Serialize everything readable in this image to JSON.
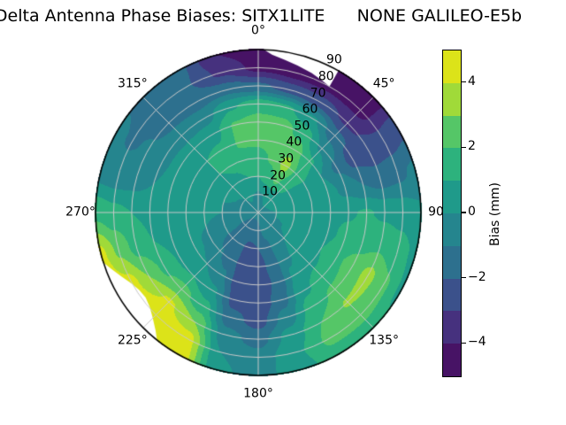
{
  "title": "Delta Antenna Phase Biases: SITX1LITE      NONE GALILEO-E5b",
  "station": "SITX1LITE",
  "antenna": "NONE",
  "signal": "GALILEO-E5b",
  "chart_data": {
    "type": "heatmap",
    "subtype": "polar-filled-contour",
    "title": "Delta Antenna Phase Biases: SITX1LITE      NONE GALILEO-E5b",
    "units": "mm",
    "angle_ticks": [
      {
        "label": "0°",
        "deg": 0
      },
      {
        "label": "45°",
        "deg": 45
      },
      {
        "label": "90",
        "deg": 90
      },
      {
        "label": "135°",
        "deg": 135
      },
      {
        "label": "180°",
        "deg": 180
      },
      {
        "label": "225°",
        "deg": 225
      },
      {
        "label": "270°",
        "deg": 270
      },
      {
        "label": "315°",
        "deg": 315
      }
    ],
    "radial_ticks": [
      {
        "label": "10",
        "r": 10
      },
      {
        "label": "20",
        "r": 20
      },
      {
        "label": "30",
        "r": 30
      },
      {
        "label": "40",
        "r": 40
      },
      {
        "label": "50",
        "r": 50
      },
      {
        "label": "60",
        "r": 60
      },
      {
        "label": "70",
        "r": 70
      },
      {
        "label": "80",
        "r": 80
      },
      {
        "label": "90",
        "r": 90
      }
    ],
    "radial_range": [
      0,
      90
    ],
    "grid_on": true,
    "colorbar": {
      "label": "Bias (mm)",
      "vmin": -5,
      "vmax": 5,
      "tick_values": [
        4,
        2,
        0,
        -2,
        -4
      ],
      "tick_labels": [
        "4",
        "2",
        "0",
        "−2",
        "−4"
      ],
      "band_colors_low_to_high": [
        "#471365",
        "#46317e",
        "#3b518b",
        "#2d708e",
        "#25858e",
        "#1f9a8a",
        "#2db27d",
        "#55c667",
        "#a0da39",
        "#dce319"
      ]
    },
    "grid": {
      "azimuths_deg": [
        0,
        15,
        30,
        45,
        60,
        75,
        90,
        105,
        120,
        135,
        150,
        165,
        180,
        195,
        210,
        225,
        240,
        255,
        270,
        285,
        300,
        315,
        330,
        345
      ],
      "radii": [
        0,
        10,
        20,
        30,
        40,
        50,
        60,
        70,
        80,
        90
      ],
      "values_mm": [
        [
          -0.3,
          -0.1,
          1.0,
          1.6,
          2.2,
          2.4,
          1.5,
          -1.8,
          -4.3,
          -4.8
        ],
        [
          -0.3,
          0.0,
          1.5,
          2.1,
          2.5,
          2.4,
          1.2,
          -2.4,
          -4.6,
          -4.8
        ],
        [
          -0.2,
          0.2,
          2.2,
          3.4,
          2.6,
          1.6,
          0.2,
          -2.6,
          -4.4,
          -4.7
        ],
        [
          -0.2,
          0.3,
          1.4,
          1.8,
          1.2,
          -0.2,
          -1.6,
          -3.2,
          -4.4,
          -4.5
        ],
        [
          -0.2,
          0.2,
          0.7,
          0.8,
          0.0,
          -1.2,
          -2.4,
          -2.8,
          -2.6,
          -2.2
        ],
        [
          -0.2,
          0.1,
          0.4,
          0.6,
          0.4,
          -0.3,
          -1.0,
          -1.4,
          -1.2,
          -0.8
        ],
        [
          -0.3,
          0.0,
          0.4,
          0.6,
          0.8,
          0.9,
          1.1,
          0.8,
          0.6,
          0.2
        ],
        [
          -0.3,
          0.0,
          0.3,
          0.5,
          0.8,
          1.2,
          1.6,
          1.8,
          1.4,
          0.8
        ],
        [
          -0.3,
          -0.2,
          0.2,
          0.5,
          1.0,
          1.8,
          2.4,
          3.3,
          2.2,
          0.8
        ],
        [
          -0.4,
          -0.3,
          0.0,
          0.3,
          0.8,
          1.5,
          2.2,
          3.1,
          2.3,
          1.4
        ],
        [
          -0.5,
          -0.5,
          -0.4,
          -0.2,
          0.2,
          0.8,
          1.5,
          2.0,
          2.2,
          1.6
        ],
        [
          -0.6,
          -0.8,
          -1.2,
          -1.6,
          -1.8,
          -1.4,
          -0.6,
          0.4,
          0.8,
          0.6
        ],
        [
          -0.7,
          -1.2,
          -2.0,
          -2.5,
          -2.8,
          -2.8,
          -2.4,
          -1.4,
          -0.6,
          -0.4
        ],
        [
          -0.8,
          -1.4,
          -2.2,
          -2.6,
          -2.7,
          -2.4,
          -1.6,
          -0.6,
          0.0,
          0.2
        ],
        [
          -0.8,
          -1.4,
          -1.8,
          -1.5,
          -0.8,
          0.2,
          1.4,
          3.0,
          4.6,
          5.0
        ],
        [
          -0.8,
          -1.3,
          -1.4,
          -0.9,
          0.0,
          1.0,
          2.4,
          4.2,
          5.0,
          5.0
        ],
        [
          -0.7,
          -1.0,
          -0.8,
          -0.3,
          0.3,
          0.9,
          1.8,
          3.0,
          4.4,
          5.0
        ],
        [
          -0.6,
          -0.6,
          -0.3,
          0.0,
          0.3,
          0.6,
          1.0,
          1.6,
          2.8,
          4.3
        ],
        [
          -0.5,
          -0.3,
          0.0,
          0.2,
          0.4,
          0.6,
          0.8,
          1.0,
          1.3,
          1.7
        ],
        [
          -0.4,
          -0.2,
          0.0,
          0.3,
          0.5,
          0.4,
          0.0,
          -0.4,
          -0.6,
          -0.5
        ],
        [
          -0.4,
          -0.1,
          0.3,
          0.8,
          0.8,
          0.4,
          -0.3,
          -0.9,
          -1.1,
          -0.8
        ],
        [
          -0.4,
          0.0,
          0.5,
          1.0,
          1.0,
          0.5,
          -0.5,
          -1.3,
          -1.5,
          -1.2
        ],
        [
          -0.3,
          0.1,
          0.8,
          1.2,
          1.2,
          0.6,
          -0.4,
          -1.5,
          -1.9,
          -1.7
        ],
        [
          -0.3,
          0.0,
          1.0,
          1.7,
          2.1,
          2.1,
          0.9,
          -1.4,
          -3.2,
          -4.0
        ]
      ]
    },
    "masked_regions_polar": [
      [
        [
          2,
          90
        ],
        [
          5,
          87.5
        ],
        [
          10,
          85.5
        ],
        [
          15,
          84
        ],
        [
          21,
          82.5
        ],
        [
          26,
          81
        ],
        [
          29.5,
          80
        ],
        [
          29.5,
          96
        ],
        [
          2,
          96
        ]
      ],
      [
        [
          218.5,
          90
        ],
        [
          221,
          86.5
        ],
        [
          225,
          82.5
        ],
        [
          229,
          79.5
        ],
        [
          233,
          78
        ],
        [
          237,
          78.5
        ],
        [
          241,
          80.5
        ],
        [
          245,
          83.5
        ],
        [
          249,
          87
        ],
        [
          252,
          90
        ],
        [
          252,
          96
        ],
        [
          218.5,
          96
        ]
      ]
    ],
    "style": {
      "grid_color": "#c9c9c9",
      "rim_color": "#000000",
      "mask_color": "#ffffff",
      "background": "#ffffff"
    }
  }
}
